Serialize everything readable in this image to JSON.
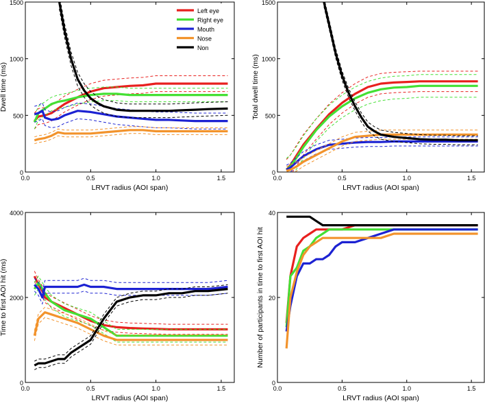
{
  "colors": {
    "left_eye": "#e8201e",
    "right_eye": "#44e034",
    "mouth": "#1c22d2",
    "nose": "#f2932c",
    "non": "#000000"
  },
  "legend": [
    "Left eye",
    "Right eye",
    "Mouth",
    "Nose",
    "Non"
  ],
  "chart_data": [
    {
      "type": "line",
      "id": "dwell",
      "xlabel": "LRVT radius (AOI span)",
      "ylabel": "Dwell time (ms)",
      "xlim": [
        0,
        1.6
      ],
      "ylim": [
        0,
        1500
      ],
      "xticks": [
        "0.0",
        "0.5",
        "1.0",
        "1.5"
      ],
      "xtick_values": [
        0,
        0.5,
        1.0,
        1.5
      ],
      "yticks": [
        "0",
        "500",
        "1000",
        "1500"
      ],
      "ytick_values": [
        0,
        500,
        1000,
        1500
      ],
      "band_ci": true,
      "series": [
        {
          "name": "Left eye",
          "color_key": "left_eye",
          "x": [
            0.07,
            0.1,
            0.15,
            0.2,
            0.25,
            0.3,
            0.4,
            0.5,
            0.6,
            0.7,
            0.8,
            0.9,
            1.0,
            1.1,
            1.2,
            1.3,
            1.4,
            1.55
          ],
          "y": [
            450,
            490,
            500,
            520,
            560,
            600,
            660,
            710,
            740,
            750,
            760,
            765,
            780,
            780,
            780,
            780,
            780,
            780
          ],
          "ci": 70
        },
        {
          "name": "Right eye",
          "color_key": "right_eye",
          "x": [
            0.07,
            0.1,
            0.15,
            0.2,
            0.25,
            0.3,
            0.4,
            0.5,
            0.6,
            0.7,
            0.8,
            0.9,
            1.0,
            1.1,
            1.2,
            1.3,
            1.4,
            1.55
          ],
          "y": [
            440,
            520,
            560,
            600,
            620,
            630,
            660,
            680,
            690,
            690,
            680,
            680,
            680,
            680,
            680,
            680,
            680,
            680
          ],
          "ci": 60
        },
        {
          "name": "Mouth",
          "color_key": "mouth",
          "x": [
            0.07,
            0.1,
            0.13,
            0.15,
            0.2,
            0.25,
            0.3,
            0.4,
            0.5,
            0.6,
            0.7,
            0.8,
            0.9,
            1.0,
            1.1,
            1.2,
            1.3,
            1.4,
            1.55
          ],
          "y": [
            510,
            520,
            540,
            480,
            460,
            470,
            500,
            540,
            530,
            510,
            490,
            480,
            470,
            460,
            460,
            455,
            450,
            450,
            450
          ],
          "ci": 70
        },
        {
          "name": "Nose",
          "color_key": "nose",
          "x": [
            0.07,
            0.1,
            0.15,
            0.2,
            0.25,
            0.3,
            0.4,
            0.5,
            0.6,
            0.7,
            0.8,
            0.9,
            1.0,
            1.1,
            1.2,
            1.3,
            1.4,
            1.55
          ],
          "y": [
            280,
            290,
            300,
            320,
            350,
            340,
            340,
            340,
            350,
            360,
            370,
            370,
            360,
            360,
            360,
            360,
            360,
            360
          ],
          "ci": 30
        },
        {
          "name": "Non",
          "color_key": "non",
          "x": [
            0.26,
            0.3,
            0.35,
            0.4,
            0.45,
            0.5,
            0.55,
            0.6,
            0.7,
            0.8,
            0.9,
            1.0,
            1.1,
            1.2,
            1.3,
            1.4,
            1.55
          ],
          "y": [
            1500,
            1250,
            1000,
            820,
            720,
            650,
            610,
            580,
            550,
            540,
            540,
            540,
            540,
            545,
            550,
            555,
            560
          ],
          "ci": 60
        }
      ]
    },
    {
      "type": "line",
      "id": "total",
      "xlabel": "LRVT radius (AOI span)",
      "ylabel": "Total dwell time (ms)",
      "xlim": [
        0,
        1.6
      ],
      "ylim": [
        0,
        1500
      ],
      "xticks": [
        "0.0",
        "0.5",
        "1.0",
        "1.5"
      ],
      "xtick_values": [
        0,
        0.5,
        1.0,
        1.5
      ],
      "yticks": [
        "0",
        "500",
        "1000",
        "1500"
      ],
      "ytick_values": [
        0,
        500,
        1000,
        1500
      ],
      "band_ci": true,
      "series": [
        {
          "name": "Left eye",
          "color_key": "left_eye",
          "x": [
            0.07,
            0.1,
            0.15,
            0.2,
            0.3,
            0.4,
            0.5,
            0.6,
            0.7,
            0.8,
            0.9,
            1.0,
            1.1,
            1.2,
            1.3,
            1.4,
            1.55
          ],
          "y": [
            20,
            60,
            150,
            240,
            380,
            510,
            610,
            690,
            750,
            780,
            790,
            795,
            800,
            800,
            800,
            800,
            800
          ],
          "ci": 90
        },
        {
          "name": "Right eye",
          "color_key": "right_eye",
          "x": [
            0.07,
            0.1,
            0.15,
            0.2,
            0.3,
            0.4,
            0.5,
            0.6,
            0.7,
            0.8,
            0.9,
            1.0,
            1.1,
            1.2,
            1.3,
            1.4,
            1.55
          ],
          "y": [
            20,
            50,
            130,
            220,
            370,
            490,
            580,
            650,
            700,
            730,
            745,
            750,
            760,
            760,
            760,
            760,
            760
          ],
          "ci": 100
        },
        {
          "name": "Mouth",
          "color_key": "mouth",
          "x": [
            0.07,
            0.1,
            0.15,
            0.2,
            0.3,
            0.4,
            0.5,
            0.6,
            0.7,
            0.8,
            0.9,
            1.0,
            1.1,
            1.2,
            1.3,
            1.4,
            1.55
          ],
          "y": [
            20,
            40,
            90,
            140,
            200,
            240,
            250,
            260,
            265,
            265,
            270,
            270,
            270,
            270,
            270,
            270,
            270
          ],
          "ci": 40
        },
        {
          "name": "Nose",
          "color_key": "nose",
          "x": [
            0.07,
            0.1,
            0.15,
            0.2,
            0.3,
            0.4,
            0.5,
            0.6,
            0.7,
            0.8,
            0.9,
            1.0,
            1.1,
            1.2,
            1.3,
            1.4,
            1.55
          ],
          "y": [
            10,
            20,
            50,
            90,
            150,
            210,
            270,
            310,
            320,
            330,
            330,
            330,
            330,
            330,
            330,
            330,
            330
          ],
          "ci": 40
        },
        {
          "name": "Non",
          "color_key": "non",
          "x": [
            0.36,
            0.4,
            0.45,
            0.5,
            0.55,
            0.6,
            0.65,
            0.7,
            0.75,
            0.8,
            0.9,
            1.0,
            1.1,
            1.2,
            1.3,
            1.4,
            1.55
          ],
          "y": [
            1500,
            1300,
            1050,
            850,
            700,
            580,
            480,
            400,
            360,
            330,
            310,
            300,
            290,
            285,
            285,
            280,
            280
          ],
          "ci": 40
        }
      ]
    },
    {
      "type": "line",
      "id": "first_hit",
      "xlabel": "LRVT radius (AOI span)",
      "ylabel": "Time to first AOI hit (ms)",
      "xlim": [
        0,
        1.6
      ],
      "ylim": [
        0,
        4000
      ],
      "xticks": [
        "0.0",
        "0.5",
        "1.0",
        "1.5"
      ],
      "xtick_values": [
        0,
        0.5,
        1.0,
        1.5
      ],
      "yticks": [
        "0",
        "2000",
        "4000"
      ],
      "ytick_values": [
        0,
        2000,
        4000
      ],
      "band_ci": true,
      "series": [
        {
          "name": "Left eye",
          "color_key": "left_eye",
          "x": [
            0.07,
            0.1,
            0.13,
            0.15,
            0.2,
            0.3,
            0.4,
            0.5,
            0.6,
            0.7,
            0.8,
            0.9,
            1.0,
            1.1,
            1.2,
            1.3,
            1.4,
            1.55
          ],
          "y": [
            2500,
            2300,
            2150,
            2000,
            1900,
            1750,
            1600,
            1450,
            1350,
            1300,
            1280,
            1270,
            1260,
            1250,
            1250,
            1250,
            1250,
            1250
          ],
          "ci": 120
        },
        {
          "name": "Right eye",
          "color_key": "right_eye",
          "x": [
            0.07,
            0.1,
            0.13,
            0.15,
            0.2,
            0.3,
            0.4,
            0.5,
            0.6,
            0.7,
            0.8,
            0.9,
            1.0,
            1.1,
            1.2,
            1.3,
            1.4,
            1.55
          ],
          "y": [
            2200,
            2350,
            2200,
            2100,
            1900,
            1700,
            1600,
            1500,
            1300,
            1100,
            1100,
            1100,
            1100,
            1100,
            1100,
            1100,
            1100,
            1100
          ],
          "ci": 150
        },
        {
          "name": "Mouth",
          "color_key": "mouth",
          "x": [
            0.07,
            0.1,
            0.13,
            0.15,
            0.2,
            0.3,
            0.4,
            0.45,
            0.5,
            0.6,
            0.7,
            0.8,
            0.9,
            1.0,
            1.1,
            1.2,
            1.3,
            1.4,
            1.55
          ],
          "y": [
            2300,
            2200,
            2000,
            2250,
            2250,
            2250,
            2250,
            2300,
            2250,
            2250,
            2200,
            2200,
            2200,
            2200,
            2200,
            2200,
            2200,
            2200,
            2250
          ],
          "ci": 150
        },
        {
          "name": "Nose",
          "color_key": "nose",
          "x": [
            0.07,
            0.1,
            0.15,
            0.2,
            0.3,
            0.4,
            0.5,
            0.6,
            0.7,
            0.8,
            0.9,
            1.0,
            1.1,
            1.2,
            1.3,
            1.4,
            1.55
          ],
          "y": [
            1100,
            1500,
            1650,
            1600,
            1500,
            1400,
            1250,
            1100,
            1000,
            1000,
            1000,
            1000,
            1000,
            1000,
            1000,
            1000,
            1000
          ],
          "ci": 120
        },
        {
          "name": "Non",
          "color_key": "non",
          "x": [
            0.07,
            0.1,
            0.15,
            0.2,
            0.25,
            0.3,
            0.35,
            0.4,
            0.5,
            0.6,
            0.7,
            0.8,
            0.9,
            1.0,
            1.1,
            1.2,
            1.3,
            1.4,
            1.55
          ],
          "y": [
            400,
            450,
            450,
            500,
            550,
            550,
            700,
            800,
            1000,
            1500,
            1900,
            2000,
            2050,
            2050,
            2100,
            2100,
            2150,
            2150,
            2200
          ],
          "ci": 100
        }
      ]
    },
    {
      "type": "line",
      "id": "participants",
      "xlabel": "LRVT radius (AOI span)",
      "ylabel": "Number of participants in time to first AOI hit",
      "xlim": [
        0,
        1.6
      ],
      "ylim": [
        0,
        40
      ],
      "xticks": [
        "0.0",
        "0.5",
        "1.0",
        "1.5"
      ],
      "xtick_values": [
        0,
        0.5,
        1.0,
        1.5
      ],
      "yticks": [
        "0",
        "20",
        "40"
      ],
      "ytick_values": [
        0,
        20,
        40
      ],
      "band_ci": false,
      "series": [
        {
          "name": "Left eye",
          "color_key": "left_eye",
          "x": [
            0.07,
            0.1,
            0.15,
            0.2,
            0.25,
            0.3,
            0.35,
            0.4,
            0.5,
            0.6,
            0.7,
            0.8,
            0.9,
            1.0,
            1.1,
            1.2,
            1.3,
            1.4,
            1.55
          ],
          "y": [
            14,
            25,
            32,
            34,
            35,
            36,
            36,
            36,
            36,
            37,
            37,
            37,
            37,
            37,
            37,
            37,
            37,
            37,
            37
          ]
        },
        {
          "name": "Right eye",
          "color_key": "right_eye",
          "x": [
            0.07,
            0.1,
            0.15,
            0.2,
            0.25,
            0.3,
            0.35,
            0.4,
            0.5,
            0.6,
            0.7,
            0.8,
            0.9,
            1.0,
            1.1,
            1.2,
            1.3,
            1.4,
            1.55
          ],
          "y": [
            13,
            25,
            27,
            31,
            32,
            34,
            35,
            36,
            36,
            36,
            36,
            36,
            36,
            36,
            36,
            36,
            36,
            36,
            36
          ]
        },
        {
          "name": "Mouth",
          "color_key": "mouth",
          "x": [
            0.07,
            0.1,
            0.15,
            0.2,
            0.25,
            0.3,
            0.35,
            0.4,
            0.45,
            0.5,
            0.55,
            0.6,
            0.7,
            0.8,
            0.9,
            1.0,
            1.1,
            1.2,
            1.3,
            1.4,
            1.55
          ],
          "y": [
            12,
            18,
            25,
            28,
            28,
            29,
            29,
            30,
            32,
            33,
            33,
            33,
            34,
            35,
            36,
            36,
            36,
            36,
            36,
            36,
            36
          ]
        },
        {
          "name": "Nose",
          "color_key": "nose",
          "x": [
            0.07,
            0.1,
            0.15,
            0.2,
            0.25,
            0.3,
            0.35,
            0.4,
            0.5,
            0.6,
            0.7,
            0.8,
            0.9,
            1.0,
            1.1,
            1.2,
            1.3,
            1.4,
            1.55
          ],
          "y": [
            8,
            20,
            26,
            30,
            32,
            33,
            34,
            34,
            34,
            34,
            34,
            34,
            35,
            35,
            35,
            35,
            35,
            35,
            35
          ]
        },
        {
          "name": "Non",
          "color_key": "non",
          "x": [
            0.07,
            0.1,
            0.15,
            0.2,
            0.25,
            0.3,
            0.35,
            0.4,
            0.5,
            0.6,
            0.7,
            0.8,
            0.9,
            1.0,
            1.1,
            1.2,
            1.3,
            1.4,
            1.55
          ],
          "y": [
            39,
            39,
            39,
            39,
            39,
            38,
            37,
            37,
            37,
            37,
            37,
            37,
            37,
            37,
            37,
            37,
            37,
            37,
            37
          ]
        }
      ]
    }
  ]
}
